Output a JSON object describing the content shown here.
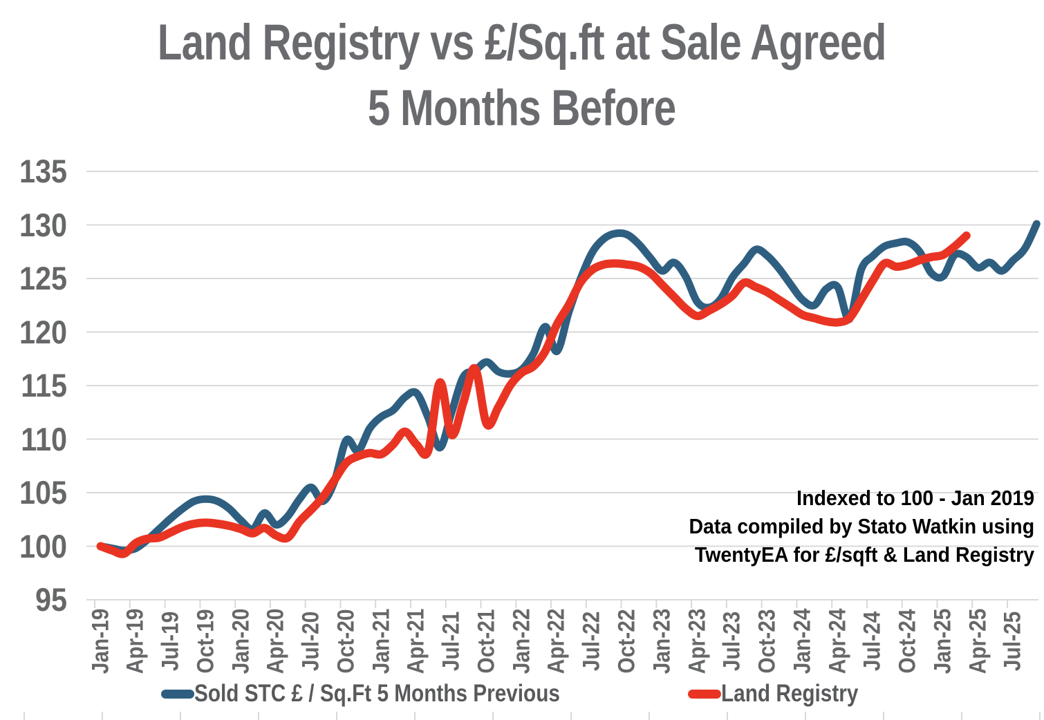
{
  "title": {
    "line1": "Land Registry  vs £/Sq.ft at Sale Agreed",
    "line2": "5 Months Before"
  },
  "annotation": {
    "line1": "Indexed to 100 - Jan 2019",
    "line2": "Data compiled by Stato Watkin using",
    "line3": "TwentyEA for £/sqft & Land Registry"
  },
  "colors": {
    "blue_series": "#2E5F80",
    "red_series": "#E93423",
    "gridline": "#D9D9D9",
    "title_text": "#6A6B6E",
    "axis_text": "#666769",
    "legend_text": "#58595B",
    "annotation_text": "#000000"
  },
  "chart_data": {
    "type": "line",
    "title": "Land Registry  vs £/Sq.ft at Sale Agreed 5 Months Before",
    "index_base": "Indexed to 100 - Jan 2019",
    "ylim": [
      95,
      135
    ],
    "yticks": [
      95,
      100,
      105,
      110,
      115,
      120,
      125,
      130,
      135
    ],
    "grid": "horizontal",
    "legend_position": "bottom",
    "x_tick_labels": [
      "Jan-19",
      "Apr-19",
      "Jul-19",
      "Oct-19",
      "Jan-20",
      "Apr-20",
      "Jul-20",
      "Oct-20",
      "Jan-21",
      "Apr-21",
      "Jul-21",
      "Oct-21",
      "Jan-22",
      "Apr-22",
      "Jul-22",
      "Oct-22",
      "Jan-23",
      "Apr-23",
      "Jul-23",
      "Oct-23",
      "Jan-24",
      "Apr-24",
      "Jul-24",
      "Oct-24",
      "Jan-25",
      "Apr-25",
      "Jul-25"
    ],
    "months": [
      "Jan-19",
      "Feb-19",
      "Mar-19",
      "Apr-19",
      "May-19",
      "Jun-19",
      "Jul-19",
      "Aug-19",
      "Sep-19",
      "Oct-19",
      "Nov-19",
      "Dec-19",
      "Jan-20",
      "Feb-20",
      "Mar-20",
      "Apr-20",
      "May-20",
      "Jun-20",
      "Jul-20",
      "Aug-20",
      "Sep-20",
      "Oct-20",
      "Nov-20",
      "Dec-20",
      "Jan-21",
      "Feb-21",
      "Mar-21",
      "Apr-21",
      "May-21",
      "Jun-21",
      "Jul-21",
      "Aug-21",
      "Sep-21",
      "Oct-21",
      "Nov-21",
      "Dec-21",
      "Jan-22",
      "Feb-22",
      "Mar-22",
      "Apr-22",
      "May-22",
      "Jun-22",
      "Jul-22",
      "Aug-22",
      "Sep-22",
      "Oct-22",
      "Nov-22",
      "Dec-22",
      "Jan-23",
      "Feb-23",
      "Mar-23",
      "Apr-23",
      "May-23",
      "Jun-23",
      "Jul-23",
      "Aug-23",
      "Sep-23",
      "Oct-23",
      "Nov-23",
      "Dec-23",
      "Jan-24",
      "Feb-24",
      "Mar-24",
      "Apr-24",
      "May-24",
      "Jun-24",
      "Jul-24",
      "Aug-24",
      "Sep-24",
      "Oct-24",
      "Nov-24",
      "Dec-24",
      "Jan-25",
      "Feb-25",
      "Mar-25",
      "Apr-25",
      "May-25",
      "Jun-25",
      "Jul-25",
      "Aug-25",
      "Sep-25"
    ],
    "series": [
      {
        "name": "Sold STC £ / Sq.Ft 5 Months Previous",
        "color": "#2E5F80",
        "values": [
          100.0,
          99.8,
          99.6,
          99.8,
          100.6,
          101.6,
          102.6,
          103.5,
          104.2,
          104.4,
          104.2,
          103.5,
          102.4,
          101.6,
          103.1,
          102.0,
          102.8,
          104.4,
          105.5,
          104.2,
          106.1,
          109.9,
          108.9,
          111.0,
          112.1,
          112.7,
          113.9,
          114.3,
          112.0,
          109.2,
          112.5,
          115.8,
          116.4,
          117.2,
          116.3,
          116.1,
          116.5,
          118.0,
          120.5,
          118.2,
          121.8,
          124.9,
          127.4,
          128.7,
          129.2,
          129.1,
          128.2,
          126.9,
          125.7,
          126.5,
          125.2,
          122.8,
          122.3,
          123.1,
          125.1,
          126.4,
          127.7,
          127.1,
          125.9,
          124.4,
          123.0,
          122.5,
          124.0,
          124.2,
          121.2,
          125.8,
          127.1,
          128.0,
          128.3,
          128.4,
          127.5,
          125.5,
          125.2,
          127.2,
          127.0,
          126.0,
          126.5,
          125.7,
          126.7,
          127.8,
          130.1
        ]
      },
      {
        "name": "Land Registry",
        "color": "#E93423",
        "values": [
          100.0,
          99.6,
          99.3,
          100.3,
          100.7,
          100.8,
          101.3,
          101.8,
          102.1,
          102.2,
          102.1,
          101.9,
          101.6,
          101.2,
          101.7,
          101.0,
          100.8,
          102.3,
          103.4,
          104.6,
          106.2,
          107.8,
          108.4,
          108.7,
          108.6,
          109.5,
          110.7,
          109.5,
          108.9,
          115.3,
          110.4,
          113.4,
          116.6,
          111.4,
          113.0,
          115.0,
          116.2,
          116.8,
          118.2,
          120.7,
          122.5,
          124.6,
          125.8,
          126.3,
          126.4,
          126.3,
          126.1,
          125.5,
          124.4,
          123.3,
          122.2,
          121.5,
          122.0,
          122.6,
          123.4,
          124.6,
          124.2,
          123.7,
          123.0,
          122.3,
          121.6,
          121.3,
          121.0,
          120.9,
          121.3,
          123.0,
          124.8,
          126.4,
          126.1,
          126.3,
          126.7,
          127.0,
          127.2,
          128.0,
          129.0
        ]
      }
    ]
  }
}
